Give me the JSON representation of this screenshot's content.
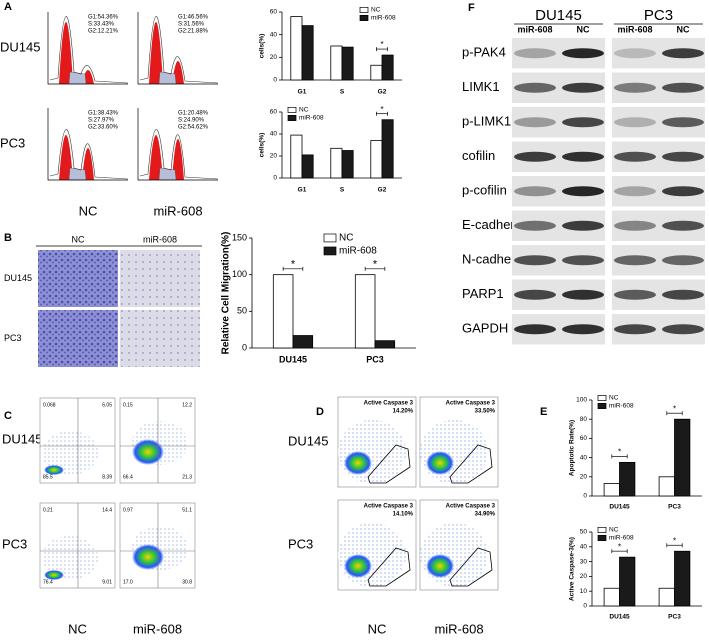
{
  "chart_data": [
    {
      "type": "bar",
      "y_label": "cells(%)",
      "categories": [
        "G1",
        "S",
        "G2"
      ],
      "series": [
        {
          "name": "NC",
          "color": "#ffffff",
          "values": [
            56,
            30,
            13
          ]
        },
        {
          "name": "miR-608",
          "color": "#1a1a1a",
          "values": [
            48,
            29,
            22
          ]
        }
      ],
      "ylim": [
        0,
        60
      ],
      "yticks": [
        0,
        20,
        40,
        60
      ],
      "legend": "upper right",
      "annotations": [
        {
          "text": "*",
          "category": "G2"
        }
      ]
    },
    {
      "type": "bar",
      "y_label": "cells(%)",
      "categories": [
        "G1",
        "S",
        "G2"
      ],
      "series": [
        {
          "name": "NC",
          "color": "#ffffff",
          "values": [
            39,
            27,
            34
          ]
        },
        {
          "name": "miR-608",
          "color": "#1a1a1a",
          "values": [
            21,
            25,
            53
          ]
        }
      ],
      "ylim": [
        0,
        60
      ],
      "yticks": [
        0,
        20,
        40,
        60
      ],
      "legend": "upper left",
      "annotations": [
        {
          "text": "*",
          "category": "G2"
        }
      ]
    },
    {
      "type": "bar",
      "y_label": "Relative Cell Migration(%)",
      "categories": [
        "DU145",
        "PC3"
      ],
      "series": [
        {
          "name": "NC",
          "color": "#ffffff",
          "values": [
            100,
            100
          ]
        },
        {
          "name": "miR-608",
          "color": "#1a1a1a",
          "values": [
            17,
            10
          ]
        }
      ],
      "ylim": [
        0,
        150
      ],
      "yticks": [
        0,
        50,
        100,
        150
      ],
      "legend": "upper center",
      "annotations": [
        {
          "text": "*",
          "category": "DU145"
        },
        {
          "text": "*",
          "category": "PC3"
        }
      ]
    },
    {
      "type": "bar",
      "y_label": "Apoptotic Rate(%)",
      "categories": [
        "DU145",
        "PC3"
      ],
      "series": [
        {
          "name": "NC",
          "color": "#ffffff",
          "values": [
            13,
            20
          ]
        },
        {
          "name": "miR-608",
          "color": "#1a1a1a",
          "values": [
            35,
            80
          ]
        }
      ],
      "ylim": [
        0,
        100
      ],
      "yticks": [
        0,
        20,
        40,
        60,
        80,
        100
      ],
      "legend": "upper left",
      "annotations": [
        {
          "text": "*",
          "category": "DU145"
        },
        {
          "text": "*",
          "category": "PC3"
        }
      ]
    },
    {
      "type": "bar",
      "y_label": "Active Caspase-3(%)",
      "categories": [
        "DU145",
        "PC3"
      ],
      "series": [
        {
          "name": "NC",
          "color": "#ffffff",
          "values": [
            12,
            12
          ]
        },
        {
          "name": "miR-608",
          "color": "#1a1a1a",
          "values": [
            33,
            37
          ]
        }
      ],
      "ylim": [
        0,
        50
      ],
      "yticks": [
        0,
        10,
        20,
        30,
        40,
        50
      ],
      "legend": "upper left",
      "annotations": [
        {
          "text": "*",
          "category": "DU145"
        },
        {
          "text": "*",
          "category": "PC3"
        }
      ]
    }
  ],
  "panel_letters": [
    "A",
    "B",
    "C",
    "D",
    "E",
    "F"
  ],
  "cell_cycle": {
    "rows": [
      "DU145",
      "PC3"
    ],
    "columns": [
      "NC",
      "miR-608"
    ],
    "stats": [
      [
        [
          "G1:54.36%",
          "S:33.43%",
          "G2:12.21%"
        ],
        [
          "G1:46.56%",
          "S:31.56%",
          "G2:21.88%"
        ]
      ],
      [
        [
          "G1:38.43%",
          "S:27.97%",
          "G2:33.60%"
        ],
        [
          "G1:20.48%",
          "S:24.90%",
          "G2:54.62%"
        ]
      ]
    ]
  },
  "migration_images": {
    "rows": [
      "DU145",
      "PC3"
    ],
    "columns": [
      "NC",
      "miR-608"
    ]
  },
  "annexin": {
    "rows": [
      "DU145",
      "PC3"
    ],
    "columns": [
      "NC",
      "miR-608"
    ],
    "quadrants": [
      [
        [
          "0.068",
          "6.05",
          "85.5",
          "8.39"
        ],
        [
          "0.15",
          "12.2",
          "66.4",
          "21.3"
        ]
      ],
      [
        [
          "0.21",
          "14.4",
          "76.4",
          "9.01"
        ],
        [
          "0.97",
          "51.1",
          "17.0",
          "30.8"
        ]
      ]
    ]
  },
  "caspase_flow": {
    "rows": [
      "DU145",
      "PC3"
    ],
    "columns": [
      "NC",
      "miR-608"
    ],
    "gate_label": "Active Caspase 3",
    "values": [
      [
        "14.20%",
        "33.50%"
      ],
      [
        "14.10%",
        "34.90%"
      ]
    ]
  },
  "western": {
    "cell_lines": [
      "DU145",
      "PC3"
    ],
    "lanes": [
      "miR-608",
      "NC"
    ],
    "proteins": [
      "p-PAK4",
      "LIMK1",
      "p-LIMK1",
      "cofilin",
      "p-cofilin",
      "E-cadherin",
      "N-cadherin",
      "PARP1",
      "GAPDH"
    ]
  }
}
